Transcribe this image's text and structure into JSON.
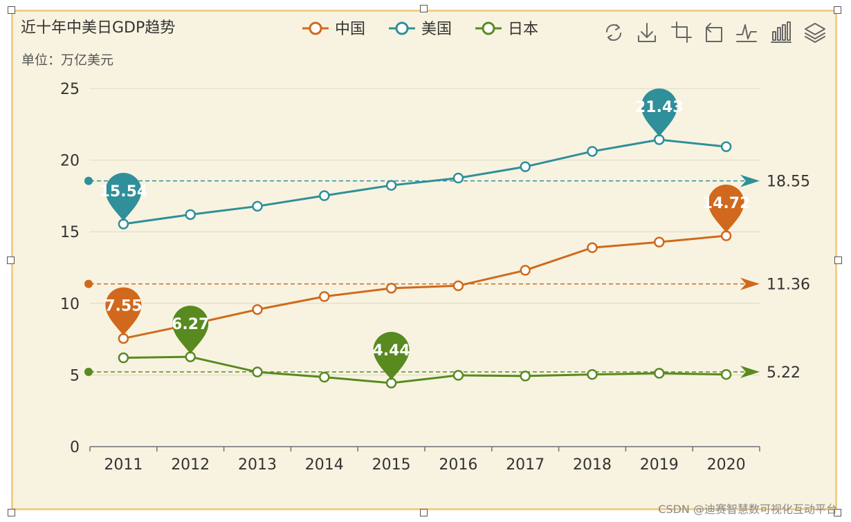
{
  "watermark": "CSDN @迪赛智慧数可视化互动平台",
  "toolbar": {
    "icons": [
      "refresh-icon",
      "download-icon",
      "crop-icon",
      "restore-icon",
      "line-chart-icon",
      "bar-chart-icon",
      "layers-icon"
    ]
  },
  "chart_data": {
    "type": "line",
    "title": "近十年中美日GDP趋势",
    "subtitle": "单位：万亿美元",
    "categories": [
      "2011",
      "2012",
      "2013",
      "2014",
      "2015",
      "2016",
      "2017",
      "2018",
      "2019",
      "2020"
    ],
    "ylim": [
      0,
      25
    ],
    "yticks": [
      0,
      5,
      10,
      15,
      20,
      25
    ],
    "grid": true,
    "legend_position": "top-center",
    "series": [
      {
        "name": "中国",
        "color": "#d0691d",
        "values": [
          7.55,
          8.53,
          9.57,
          10.48,
          11.06,
          11.23,
          12.31,
          13.89,
          14.28,
          14.72
        ],
        "markPoints": [
          {
            "index": 0,
            "label": "7.55"
          },
          {
            "index": 9,
            "label": "14.72"
          }
        ],
        "average": 11.36,
        "average_label": "11.36"
      },
      {
        "name": "美国",
        "color": "#2f8f9a",
        "values": [
          15.54,
          16.2,
          16.78,
          17.52,
          18.24,
          18.75,
          19.54,
          20.61,
          21.43,
          20.94
        ],
        "markPoints": [
          {
            "index": 0,
            "label": "15.54"
          },
          {
            "index": 8,
            "label": "21.43"
          }
        ],
        "average": 18.55,
        "average_label": "18.55"
      },
      {
        "name": "日本",
        "color": "#588a1f",
        "values": [
          6.2,
          6.27,
          5.21,
          4.85,
          4.44,
          4.98,
          4.93,
          5.04,
          5.12,
          5.04
        ],
        "markPoints": [
          {
            "index": 1,
            "label": "6.27"
          },
          {
            "index": 4,
            "label": "4.44"
          }
        ],
        "average": 5.22,
        "average_label": "5.22"
      }
    ]
  }
}
